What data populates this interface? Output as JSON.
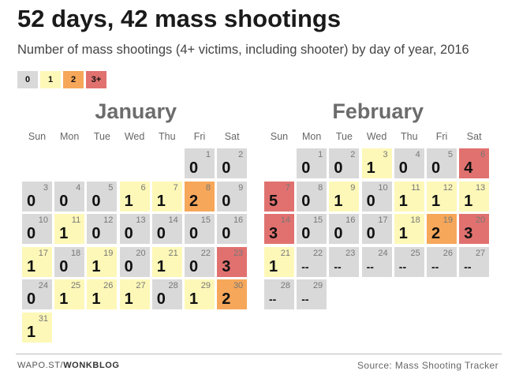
{
  "title": "52 days, 42 mass shootings",
  "subtitle": "Number of mass shootings (4+ victims, including shooter)  by day of year, 2016",
  "legend": [
    {
      "label": "0",
      "color": "#d9d9d9"
    },
    {
      "label": "1",
      "color": "#fdf8b8"
    },
    {
      "label": "2",
      "color": "#f6a75a"
    },
    {
      "label": "3+",
      "color": "#e0716f"
    }
  ],
  "weekdays": [
    "Sun",
    "Mon",
    "Tue",
    "Wed",
    "Thu",
    "Fri",
    "Sat"
  ],
  "future_mark": "--",
  "chart_data": {
    "type": "heatmap",
    "title": "52 days, 42 mass shootings",
    "subtitle": "Number of mass shootings (4+ victims, including shooter)  by day of year, 2016",
    "months": [
      {
        "name": "January",
        "start_weekday": 5,
        "days": 31,
        "values": [
          0,
          0,
          0,
          0,
          0,
          1,
          1,
          2,
          0,
          0,
          1,
          0,
          0,
          0,
          0,
          0,
          1,
          0,
          1,
          0,
          1,
          0,
          3,
          0,
          1,
          1,
          1,
          0,
          1,
          2,
          1
        ]
      },
      {
        "name": "February",
        "start_weekday": 1,
        "days": 29,
        "values": [
          0,
          0,
          1,
          0,
          0,
          4,
          5,
          0,
          1,
          0,
          1,
          1,
          1,
          3,
          0,
          0,
          0,
          1,
          2,
          3,
          1,
          null,
          null,
          null,
          null,
          null,
          null,
          null,
          null
        ]
      }
    ]
  },
  "footer": {
    "source_prefix": "WAPO.ST/",
    "source_brand": "WONKBLOG",
    "credit": "Source: Mass Shooting Tracker"
  }
}
